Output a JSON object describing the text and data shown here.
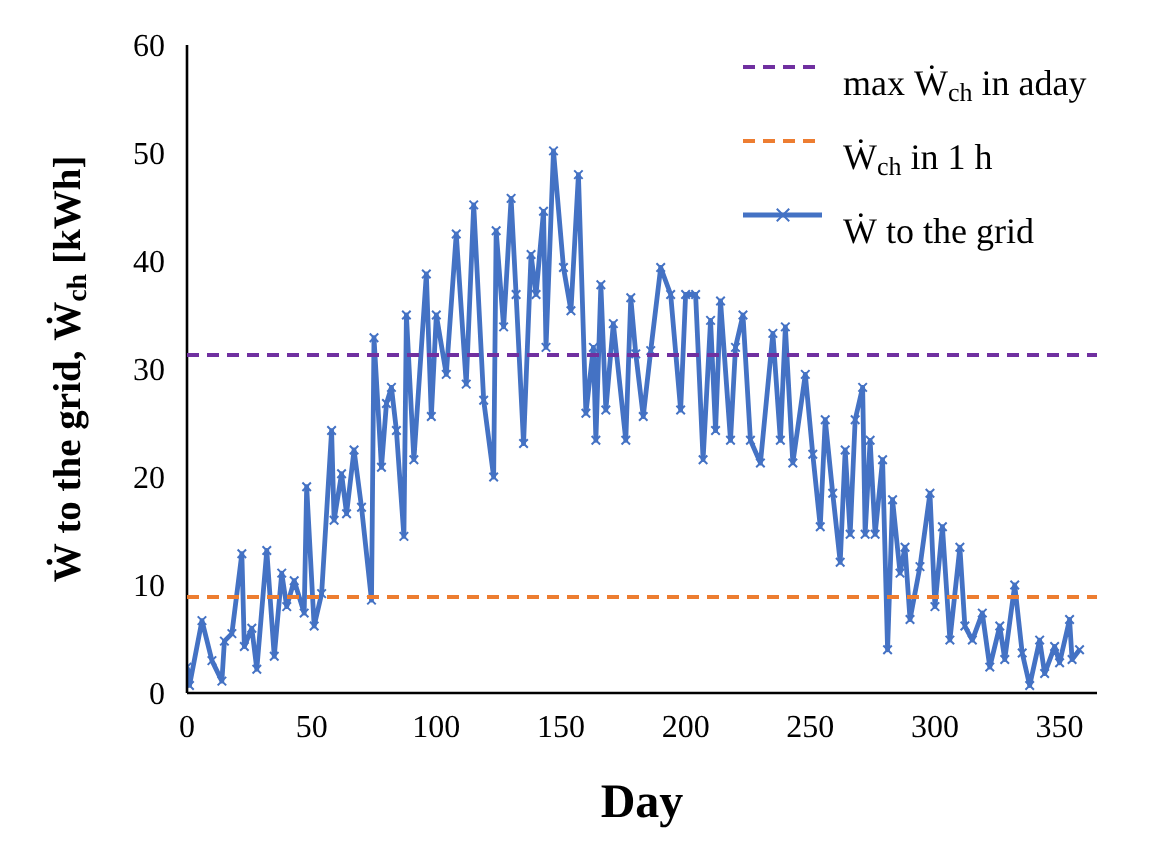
{
  "chart_data": {
    "type": "line",
    "xlabel": "Day",
    "ylabel": "Ẇ to the grid, Ẇ$_{ch}$ [kWh]",
    "xlim": [
      0,
      365
    ],
    "xticks": [
      0,
      50,
      100,
      150,
      200,
      250,
      300,
      350
    ],
    "ylim": [
      0,
      60
    ],
    "yticks": [
      0,
      10,
      20,
      30,
      40,
      50,
      60
    ],
    "grid": false,
    "legend": "top right",
    "marker": "cross",
    "line_style": "solid",
    "series": [
      {
        "name": "Ẇ to the grid",
        "color": "#4472c4",
        "x": [
          0,
          1,
          6,
          10,
          14,
          15,
          18,
          22,
          23,
          26,
          28,
          32,
          35,
          38,
          40,
          43,
          47,
          48,
          51,
          54,
          58,
          59,
          62,
          64,
          67,
          70,
          74,
          75,
          78,
          80,
          82,
          84,
          87,
          88,
          91,
          96,
          98,
          100,
          104,
          108,
          112,
          115,
          119,
          123,
          124,
          127,
          130,
          132,
          135,
          138,
          140,
          143,
          144,
          147,
          151,
          154,
          157,
          160,
          163,
          164,
          166,
          168,
          171,
          176,
          178,
          180,
          183,
          186,
          190,
          194,
          198,
          200,
          204,
          207,
          210,
          212,
          214,
          218,
          220,
          223,
          226,
          230,
          235,
          238,
          240,
          243,
          248,
          251,
          254,
          256,
          259,
          262,
          264,
          266,
          268,
          271,
          272,
          274,
          276,
          279,
          281,
          283,
          286,
          288,
          290,
          294,
          298,
          300,
          303,
          306,
          310,
          312,
          315,
          319,
          322,
          326,
          328,
          332,
          335,
          338,
          342,
          344,
          348,
          350,
          354,
          355,
          358
        ],
        "values": [
          2.4,
          0.7,
          6.7,
          3.0,
          1.1,
          4.8,
          5.5,
          12.9,
          4.3,
          6.0,
          2.2,
          13.2,
          3.4,
          11.1,
          8.0,
          10.4,
          7.4,
          19.1,
          6.2,
          9.2,
          24.3,
          16.0,
          20.3,
          16.6,
          22.5,
          17.2,
          8.6,
          32.9,
          20.9,
          26.8,
          28.3,
          24.3,
          14.5,
          35.0,
          21.6,
          38.8,
          25.6,
          35.0,
          29.5,
          42.5,
          28.6,
          45.2,
          27.1,
          20.0,
          42.8,
          33.9,
          45.8,
          36.9,
          23.1,
          40.6,
          36.9,
          44.6,
          32.0,
          50.2,
          39.4,
          35.4,
          48.0,
          25.9,
          32.0,
          23.4,
          37.8,
          26.2,
          34.2,
          23.4,
          36.6,
          31.4,
          25.6,
          31.7,
          39.4,
          36.9,
          26.2,
          36.9,
          36.9,
          21.6,
          34.5,
          24.3,
          36.3,
          23.4,
          32.0,
          35.0,
          23.4,
          21.3,
          33.3,
          23.4,
          33.9,
          21.3,
          29.5,
          22.1,
          15.4,
          25.3,
          18.5,
          12.1,
          22.5,
          14.7,
          25.3,
          28.3,
          14.7,
          23.4,
          14.7,
          21.6,
          4.0,
          17.9,
          11.1,
          13.5,
          6.8,
          11.7,
          18.5,
          8.0,
          15.4,
          4.9,
          13.5,
          6.2,
          4.9,
          7.4,
          2.4,
          6.2,
          3.1,
          10.0,
          3.7,
          0.7,
          4.9,
          1.8,
          4.3,
          2.8,
          6.8,
          3.1,
          4.0
        ]
      }
    ],
    "ref_lines": [
      {
        "axis": "y",
        "value": 31.3,
        "label": "max Ẇ$_{ch}$ in aday",
        "color": "#7030a0",
        "line_style": "dashed"
      },
      {
        "axis": "y",
        "value": 8.9,
        "label": "Ẇ$_{ch}$ in 1 h",
        "color": "#ed7d31",
        "line_style": "dashed"
      }
    ]
  }
}
